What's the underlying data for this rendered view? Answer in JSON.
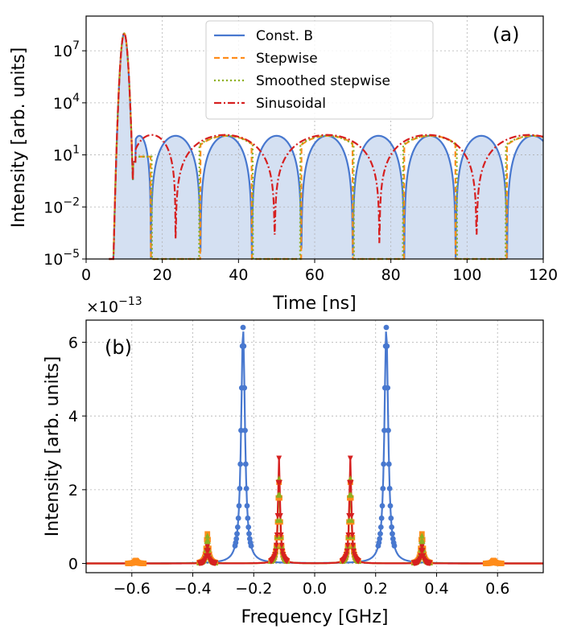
{
  "chart_data": [
    {
      "id": "a",
      "type": "line",
      "panel_label": "(a)",
      "xlabel": "Time [ns]",
      "ylabel": "Intensity [arb. units]",
      "xlim": [
        0,
        120
      ],
      "ylim_log10": [
        -5,
        9
      ],
      "yscale": "log",
      "x_ticks": [
        0,
        20,
        40,
        60,
        80,
        100,
        120
      ],
      "x_tick_labels": [
        "0",
        "20",
        "40",
        "60",
        "80",
        "100",
        "120"
      ],
      "y_ticks_log10": [
        -5,
        -2,
        1,
        4,
        7
      ],
      "y_tick_bases": [
        "10",
        "10",
        "10",
        "10",
        "10"
      ],
      "y_tick_exps": [
        "−5",
        "−2",
        "1",
        "4",
        "7"
      ],
      "grid": true,
      "legend_position": "top-center",
      "series": [
        {
          "name": "Const. B",
          "color": "#4878cf",
          "style": "solid",
          "fill": "#d4e0f2",
          "pulse_peak_ns": 10,
          "pulse_peak_log10": 8,
          "start_ns": 6,
          "zeros_ns": [
            17,
            30,
            43.5,
            56.5,
            70,
            83.5,
            97,
            110.5
          ],
          "lobe_peak_log10": 2.1
        },
        {
          "name": "Stepwise",
          "color": "#ff8c1a",
          "style": "dashed",
          "zeros_ns": [
            17,
            30,
            43.5,
            56.5,
            70,
            83.5,
            97,
            110.5
          ]
        },
        {
          "name": "Smoothed stepwise",
          "color": "#8db020",
          "style": "dotted",
          "zeros_ns": [
            17.3,
            29.7,
            43.8,
            56.2,
            70.3,
            83.2,
            97.3,
            110.2
          ]
        },
        {
          "name": "Sinusoidal",
          "color": "#d62020",
          "style": "dashdot",
          "dips_ns": [
            23.5,
            49.5,
            77,
            102.5
          ],
          "peaks_ns": [
            36.5,
            63.5,
            90,
            117
          ]
        }
      ]
    },
    {
      "id": "b",
      "type": "line",
      "panel_label": "(b)",
      "xlabel": "Frequency [GHz]",
      "ylabel": "Intensity [arb. units]",
      "offset_text_base": "×10",
      "offset_text_exp": "−13",
      "xlim": [
        -0.75,
        0.75
      ],
      "ylim": [
        -0.25,
        6.6
      ],
      "x_ticks": [
        -0.6,
        -0.4,
        -0.2,
        0.0,
        0.2,
        0.4,
        0.6
      ],
      "x_tick_labels": [
        "−0.6",
        "−0.4",
        "−0.2",
        "0.0",
        "0.2",
        "0.4",
        "0.6"
      ],
      "y_ticks": [
        0,
        2,
        4,
        6
      ],
      "y_tick_labels": [
        "0",
        "2",
        "4",
        "6"
      ],
      "grid": true,
      "series": [
        {
          "name": "Const. B",
          "color": "#4878cf",
          "marker": "circle",
          "peaks": [
            {
              "x": -0.235,
              "y": 6.4
            },
            {
              "x": 0.235,
              "y": 6.4
            }
          ]
        },
        {
          "name": "Stepwise",
          "color": "#ff8c1a",
          "marker": "square",
          "peaks": [
            {
              "x": -0.352,
              "y": 0.8
            },
            {
              "x": -0.117,
              "y": 2.2
            },
            {
              "x": 0.117,
              "y": 2.2
            },
            {
              "x": 0.352,
              "y": 0.8
            },
            {
              "x": -0.587,
              "y": 0.08
            },
            {
              "x": 0.587,
              "y": 0.08
            }
          ]
        },
        {
          "name": "Smoothed stepwise",
          "color": "#8db020",
          "marker": "triangle-up",
          "peaks": [
            {
              "x": -0.352,
              "y": 0.75
            },
            {
              "x": -0.117,
              "y": 2.3
            },
            {
              "x": 0.117,
              "y": 2.3
            },
            {
              "x": 0.352,
              "y": 0.75
            }
          ]
        },
        {
          "name": "Sinusoidal",
          "color": "#d62020",
          "marker": "triangle-down",
          "peaks": [
            {
              "x": -0.352,
              "y": 0.45
            },
            {
              "x": -0.117,
              "y": 2.85
            },
            {
              "x": 0.117,
              "y": 2.85
            },
            {
              "x": 0.352,
              "y": 0.45
            }
          ]
        }
      ]
    }
  ]
}
